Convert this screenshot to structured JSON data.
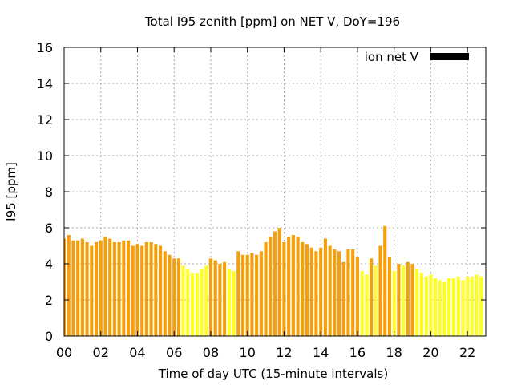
{
  "chart_data": {
    "type": "bar",
    "title": "Total I95 zenith [ppm] on NET V, DoY=196",
    "xlabel": "Time of day UTC (15-minute intervals)",
    "ylabel": "I95 [ppm]",
    "ylim": [
      0,
      16
    ],
    "xlim": [
      0,
      23
    ],
    "y_ticks": [
      "0",
      "2",
      "4",
      "6",
      "8",
      "10",
      "12",
      "14",
      "16"
    ],
    "x_ticks": [
      "00",
      "02",
      "04",
      "06",
      "08",
      "10",
      "12",
      "14",
      "16",
      "18",
      "20",
      "22"
    ],
    "grid": true,
    "legend": {
      "position": "top-right",
      "label": "ion net V",
      "swatch_color": "#000000"
    },
    "colors": {
      "orange": "#f5a00a",
      "yellow": "#ffff22"
    },
    "interval_hours": 0.25,
    "values": [
      5.4,
      5.6,
      5.3,
      5.3,
      5.4,
      5.2,
      5.0,
      5.2,
      5.3,
      5.5,
      5.4,
      5.2,
      5.2,
      5.3,
      5.3,
      5.0,
      5.1,
      5.0,
      5.2,
      5.2,
      5.1,
      5.0,
      4.7,
      4.5,
      4.3,
      4.3,
      3.9,
      3.7,
      3.5,
      3.5,
      3.7,
      3.9,
      4.3,
      4.2,
      4.0,
      4.1,
      3.7,
      3.6,
      4.7,
      4.5,
      4.5,
      4.6,
      4.5,
      4.7,
      5.2,
      5.5,
      5.8,
      6.0,
      5.2,
      5.5,
      5.6,
      5.5,
      5.2,
      5.1,
      4.9,
      4.7,
      4.9,
      5.4,
      5.0,
      4.8,
      4.7,
      4.1,
      4.8,
      4.8,
      4.4,
      3.6,
      3.4,
      4.3,
      3.9,
      5.0,
      6.1,
      4.4,
      3.6,
      4.0,
      3.9,
      4.1,
      4.0,
      3.7,
      3.5,
      3.3,
      3.4,
      3.2,
      3.1,
      3.0,
      3.2,
      3.2,
      3.3,
      3.1,
      3.3,
      3.3,
      3.4,
      3.3
    ],
    "series_color_index": [
      0,
      0,
      0,
      0,
      0,
      0,
      0,
      0,
      0,
      0,
      0,
      0,
      0,
      0,
      0,
      0,
      0,
      0,
      0,
      0,
      0,
      0,
      0,
      0,
      0,
      0,
      1,
      1,
      1,
      1,
      1,
      1,
      0,
      0,
      0,
      0,
      1,
      1,
      0,
      0,
      0,
      0,
      0,
      0,
      0,
      0,
      0,
      0,
      0,
      0,
      0,
      0,
      0,
      0,
      0,
      0,
      0,
      0,
      0,
      0,
      0,
      0,
      0,
      0,
      0,
      1,
      1,
      0,
      1,
      0,
      0,
      0,
      1,
      0,
      1,
      0,
      0,
      1,
      1,
      1,
      1,
      1,
      1,
      1,
      1,
      1,
      1,
      1,
      1,
      1,
      1,
      1
    ]
  }
}
